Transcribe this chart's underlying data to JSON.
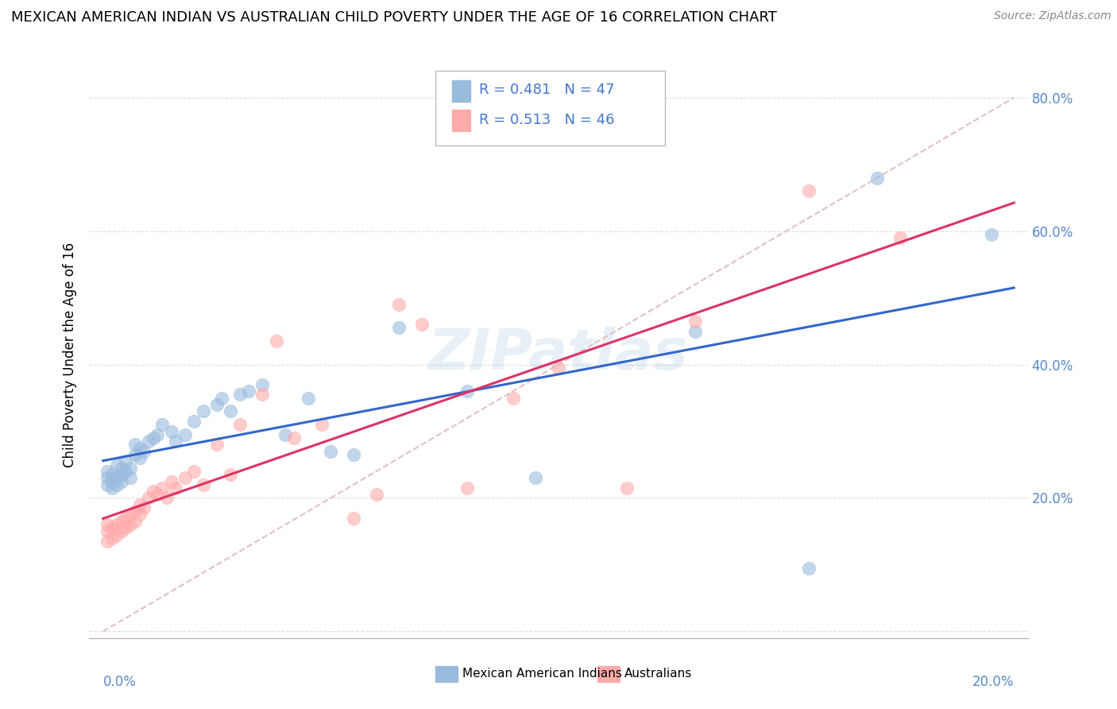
{
  "title": "MEXICAN AMERICAN INDIAN VS AUSTRALIAN CHILD POVERTY UNDER THE AGE OF 16 CORRELATION CHART",
  "source": "Source: ZipAtlas.com",
  "ylabel": "Child Poverty Under the Age of 16",
  "legend1_label": "Mexican American Indians",
  "legend2_label": "Australians",
  "legend_R1": "R = 0.481",
  "legend_N1": "N = 47",
  "legend_R2": "R = 0.513",
  "legend_N2": "N = 46",
  "blue_color": "#99BBDD",
  "pink_color": "#FFAAAA",
  "blue_line_color": "#3366CC",
  "pink_line_color": "#DD3366",
  "diagonal_color": "#DDBBBB",
  "watermark": "ZIPatlas",
  "title_fontsize": 13,
  "source_fontsize": 10,
  "tick_fontsize": 12,
  "ylabel_fontsize": 12,
  "legend_fontsize": 13,
  "x_min": 0.0,
  "x_max": 0.2,
  "y_min": 0.0,
  "y_max": 0.84,
  "blue_scatter_x": [
    0.001,
    0.001,
    0.001,
    0.002,
    0.002,
    0.002,
    0.003,
    0.003,
    0.003,
    0.004,
    0.004,
    0.004,
    0.005,
    0.005,
    0.006,
    0.006,
    0.007,
    0.007,
    0.008,
    0.008,
    0.009,
    0.01,
    0.011,
    0.012,
    0.013,
    0.015,
    0.016,
    0.018,
    0.02,
    0.022,
    0.025,
    0.026,
    0.028,
    0.03,
    0.032,
    0.035,
    0.04,
    0.045,
    0.05,
    0.055,
    0.065,
    0.08,
    0.095,
    0.13,
    0.155,
    0.17,
    0.195
  ],
  "blue_scatter_y": [
    0.22,
    0.23,
    0.24,
    0.215,
    0.225,
    0.235,
    0.22,
    0.23,
    0.25,
    0.225,
    0.235,
    0.245,
    0.24,
    0.255,
    0.23,
    0.245,
    0.265,
    0.28,
    0.26,
    0.275,
    0.27,
    0.285,
    0.29,
    0.295,
    0.31,
    0.3,
    0.285,
    0.295,
    0.315,
    0.33,
    0.34,
    0.35,
    0.33,
    0.355,
    0.36,
    0.37,
    0.295,
    0.35,
    0.27,
    0.265,
    0.455,
    0.36,
    0.23,
    0.45,
    0.095,
    0.68,
    0.595
  ],
  "pink_scatter_x": [
    0.001,
    0.001,
    0.001,
    0.002,
    0.002,
    0.003,
    0.003,
    0.004,
    0.004,
    0.005,
    0.005,
    0.006,
    0.006,
    0.007,
    0.007,
    0.008,
    0.008,
    0.009,
    0.01,
    0.011,
    0.012,
    0.013,
    0.014,
    0.015,
    0.016,
    0.018,
    0.02,
    0.022,
    0.025,
    0.028,
    0.03,
    0.035,
    0.038,
    0.042,
    0.048,
    0.055,
    0.06,
    0.065,
    0.07,
    0.08,
    0.09,
    0.1,
    0.115,
    0.13,
    0.155,
    0.175
  ],
  "pink_scatter_y": [
    0.135,
    0.15,
    0.16,
    0.14,
    0.155,
    0.145,
    0.16,
    0.15,
    0.165,
    0.155,
    0.17,
    0.16,
    0.175,
    0.165,
    0.18,
    0.175,
    0.19,
    0.185,
    0.2,
    0.21,
    0.205,
    0.215,
    0.2,
    0.225,
    0.215,
    0.23,
    0.24,
    0.22,
    0.28,
    0.235,
    0.31,
    0.355,
    0.435,
    0.29,
    0.31,
    0.17,
    0.205,
    0.49,
    0.46,
    0.215,
    0.35,
    0.395,
    0.215,
    0.465,
    0.66,
    0.59
  ],
  "y_ticks": [
    0.0,
    0.2,
    0.4,
    0.6,
    0.8
  ],
  "y_tick_labels": [
    "",
    "20.0%",
    "40.0%",
    "60.0%",
    "80.0%"
  ],
  "x_ticks": [
    0.0,
    0.05,
    0.1,
    0.15,
    0.2
  ],
  "x_tick_labels": [
    "0.0%",
    "",
    "",
    "",
    "20.0%"
  ]
}
